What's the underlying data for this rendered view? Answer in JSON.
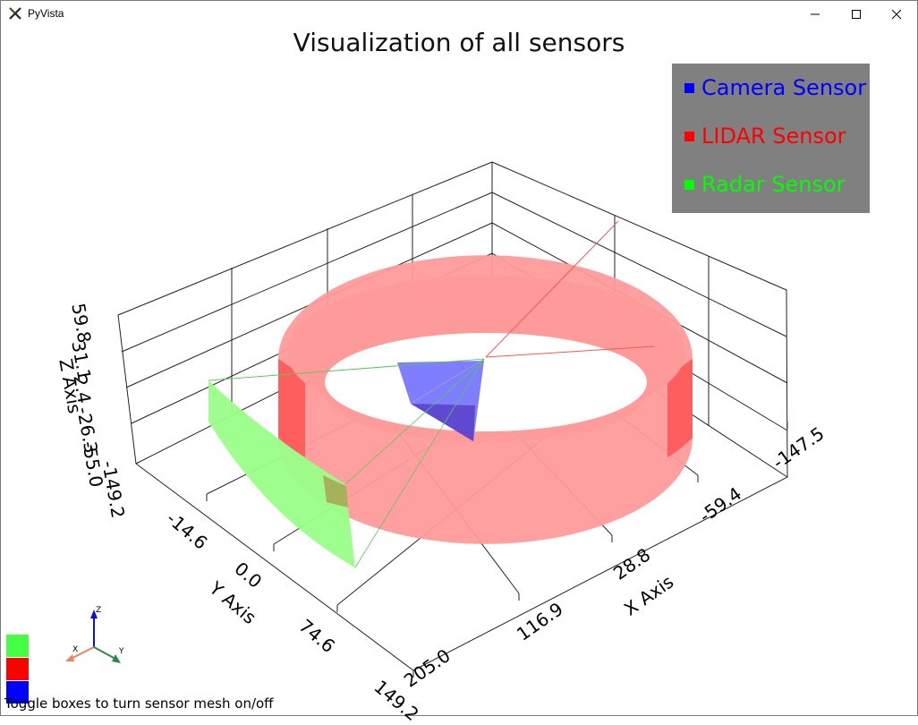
{
  "window": {
    "title": "PyVista",
    "controls": {
      "minimize_icon": "minimize-icon",
      "maximize_icon": "maximize-icon",
      "close_icon": "close-icon"
    }
  },
  "plot": {
    "title": "Visualization of all sensors",
    "x_axis": {
      "label": "X Axis",
      "ticks": [
        "205.0",
        "116.9",
        "28.8",
        "-59.4",
        "-147.5"
      ]
    },
    "y_axis": {
      "label": "Y Axis",
      "ticks": [
        "-14.6",
        "0.0",
        "74.6",
        "149.2"
      ]
    },
    "z_axis": {
      "label": "Z Axis",
      "ticks": [
        "59.8",
        "31.1",
        "2.4",
        "-26.3",
        "-55.0",
        "-149.2"
      ]
    }
  },
  "legend": {
    "entries": [
      {
        "label": "Camera Sensor",
        "color": "#0000ff"
      },
      {
        "label": "LIDAR Sensor",
        "color": "#ff0000"
      },
      {
        "label": "Radar Sensor",
        "color": "#00ff00"
      }
    ]
  },
  "toggles": [
    {
      "sensor": "radar",
      "color": "#44ff44",
      "checked": true
    },
    {
      "sensor": "lidar",
      "color": "#ff0000",
      "checked": true
    },
    {
      "sensor": "camera",
      "color": "#0000ff",
      "checked": true
    }
  ],
  "orientation_widget": {
    "x": "X",
    "y": "Y",
    "z": "Z"
  },
  "status": {
    "text": "Toggle boxes to turn sensor mesh on/off"
  },
  "colors": {
    "lidar_mesh": "#ff9a9a",
    "lidar_side": "#ff4d4d",
    "radar_mesh": "#99ff88",
    "camera_mesh": "#7070ff",
    "legend_bg": "#808080"
  }
}
